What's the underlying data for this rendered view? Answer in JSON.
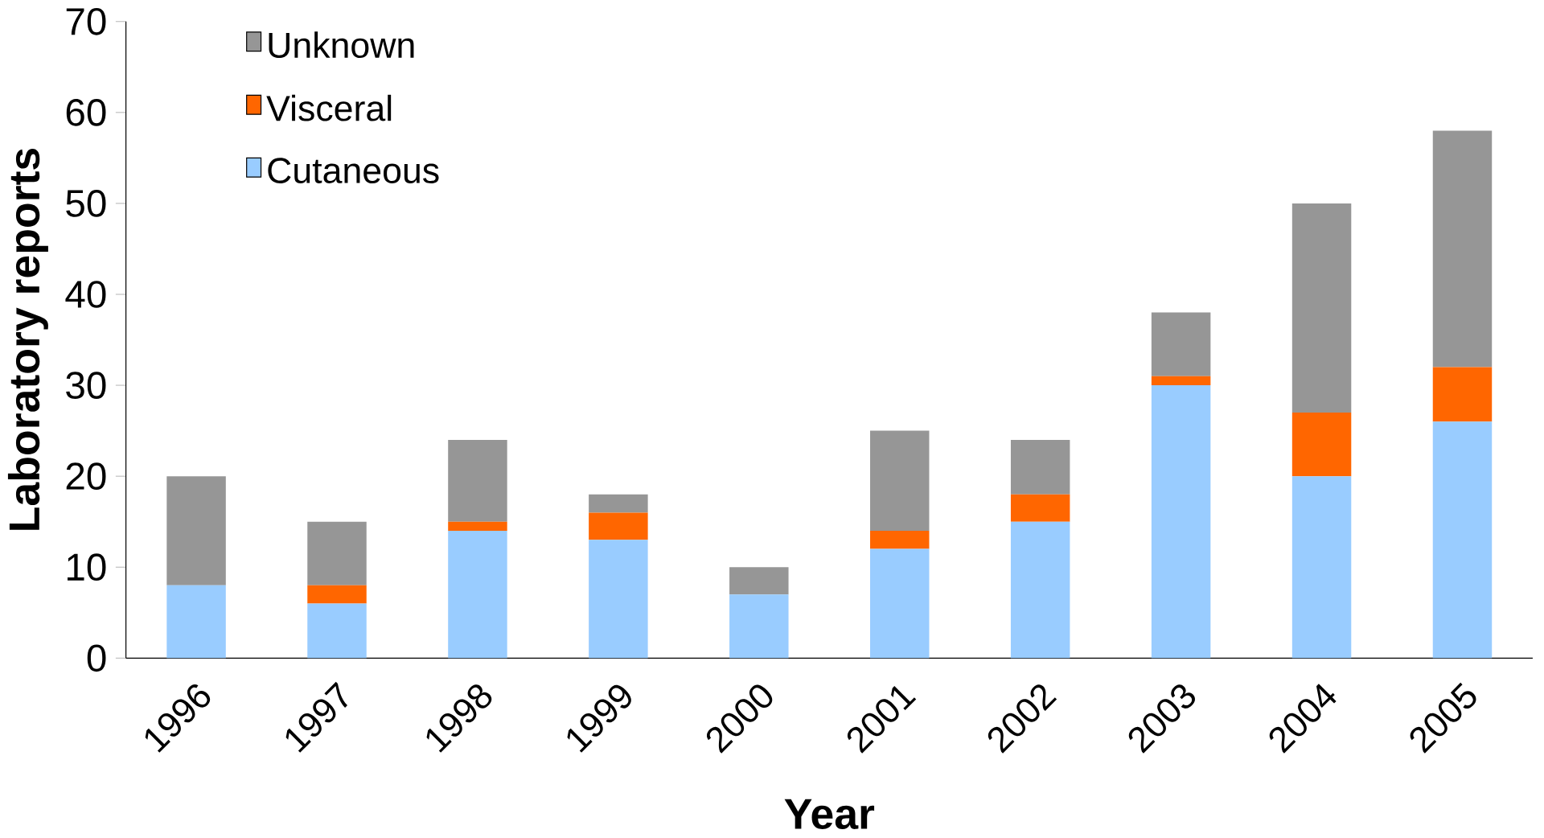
{
  "chart_data": {
    "type": "bar",
    "stacked": true,
    "xlabel": "Year",
    "ylabel": "Laboratory reports",
    "categories": [
      "1996",
      "1997",
      "1998",
      "1999",
      "2000",
      "2001",
      "2002",
      "2003",
      "2004",
      "2005"
    ],
    "series": [
      {
        "name": "Cutaneous",
        "color": "#99ccff",
        "values": [
          8,
          6,
          14,
          13,
          7,
          12,
          15,
          30,
          20,
          26
        ]
      },
      {
        "name": "Visceral",
        "color": "#ff6600",
        "values": [
          0,
          2,
          1,
          3,
          0,
          2,
          3,
          1,
          7,
          6
        ]
      },
      {
        "name": "Unknown",
        "color": "#969696",
        "values": [
          12,
          7,
          9,
          2,
          3,
          11,
          6,
          7,
          23,
          26
        ]
      }
    ],
    "ylim": [
      0,
      70
    ],
    "yticks": [
      0,
      10,
      20,
      30,
      40,
      50,
      60,
      70
    ],
    "grid": false,
    "legend": "top left"
  }
}
